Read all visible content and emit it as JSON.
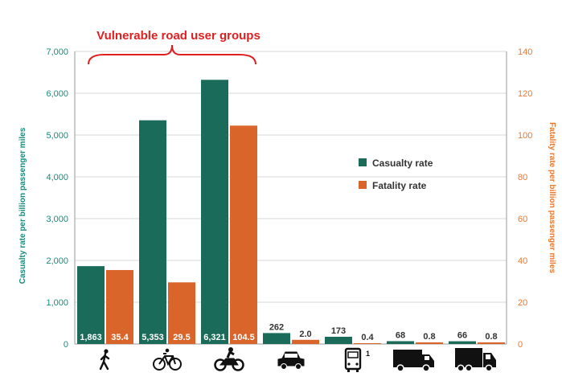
{
  "colors": {
    "casualty": "#1a6b5a",
    "fatality": "#d9652b",
    "annotation": "#e02020",
    "left_axis_text": "#1a8a7a",
    "right_axis_text": "#e8782f",
    "grid": "#d9d9d9",
    "axis": "#9a9a9a",
    "label_on_dark": "#ffffff",
    "label_default": "#333333"
  },
  "chart_data": {
    "type": "bar",
    "annotation": "Vulnerable road user groups",
    "categories": [
      "pedestrian-icon",
      "bicycle-icon",
      "motorcycle-icon",
      "car-icon",
      "bus-icon",
      "van-icon",
      "truck-icon"
    ],
    "category_footnotes": [
      "",
      "",
      "",
      "",
      "1",
      "",
      ""
    ],
    "series": [
      {
        "name": "Casualty rate",
        "axis": "left",
        "values": [
          1863,
          5353,
          6321,
          262,
          173,
          68,
          66
        ],
        "labels": [
          "1,863",
          "5,353",
          "6,321",
          "262",
          "173",
          "68",
          "66"
        ]
      },
      {
        "name": "Fatality rate",
        "axis": "right",
        "values": [
          35.4,
          29.5,
          104.5,
          2.0,
          0.4,
          0.8,
          0.8
        ],
        "labels": [
          "35.4",
          "29.5",
          "104.5",
          "2.0",
          "0.4",
          "0.8",
          "0.8"
        ]
      }
    ],
    "y_left": {
      "label": "Casualty rate per billion passenger miles",
      "range": [
        0,
        7000
      ],
      "ticks": [
        "0",
        "1,000",
        "2,000",
        "3,000",
        "4,000",
        "5,000",
        "6,000",
        "7,000"
      ]
    },
    "y_right": {
      "label": "Fatality rate per billion passenger miles",
      "range": [
        0,
        140
      ],
      "ticks": [
        "0",
        "20",
        "40",
        "60",
        "80",
        "100",
        "120",
        "140"
      ]
    },
    "grid": true,
    "legend_position": "center-right"
  }
}
